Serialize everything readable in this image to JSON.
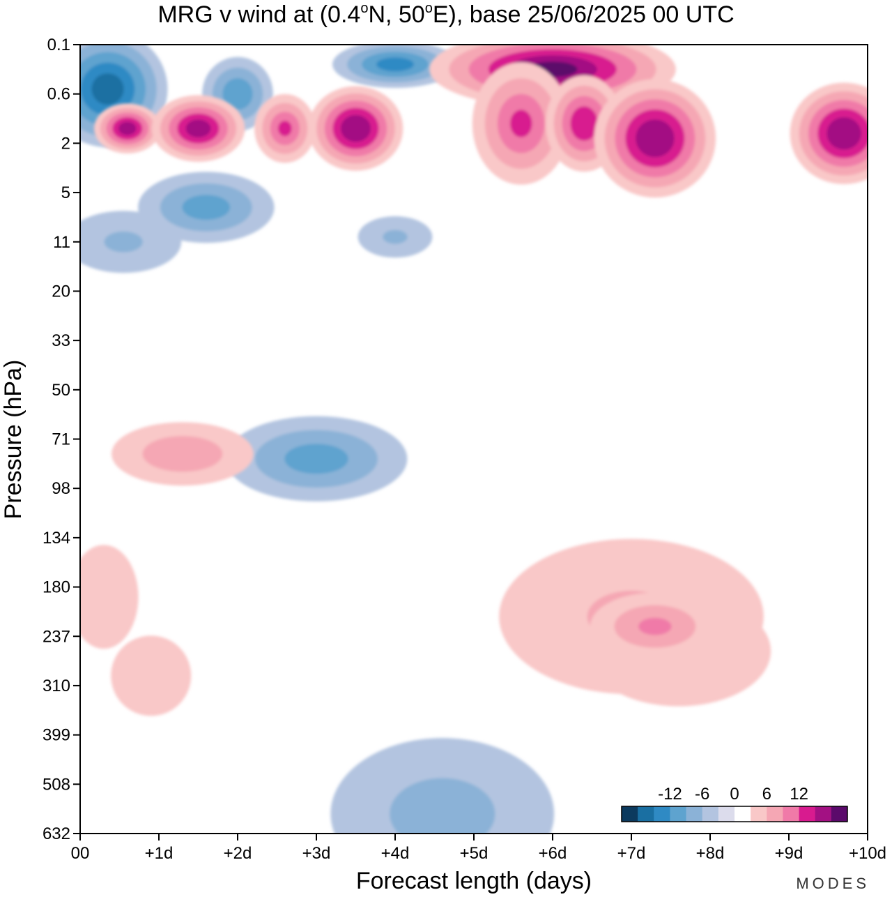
{
  "chart_data": {
    "type": "heatmap",
    "title_main": "MRG v wind at (0.4",
    "title_lat": "N, 50",
    "title_lon": "E),  base 25/06/2025  00 UTC",
    "title_deg": "o",
    "xlabel": "Forecast length (days)",
    "ylabel": "Pressure (hPa)",
    "x_ticks": [
      "00",
      "+1d",
      "+2d",
      "+3d",
      "+4d",
      "+5d",
      "+6d",
      "+7d",
      "+8d",
      "+9d",
      "+10d"
    ],
    "y_ticks": [
      "0.1",
      "0.6",
      "2",
      "5",
      "11",
      "20",
      "33",
      "50",
      "71",
      "98",
      "134",
      "180",
      "237",
      "310",
      "399",
      "508",
      "632"
    ],
    "xlim": [
      0,
      10
    ],
    "colorbar": {
      "labels": [
        "-12",
        "-6",
        "0",
        "6",
        "12"
      ],
      "label_values": [
        -12,
        -6,
        0,
        6,
        12
      ],
      "levels": [
        -18,
        -15,
        -12,
        -9,
        -6,
        -3,
        0,
        3,
        6,
        9,
        12,
        15,
        18
      ],
      "colors": [
        "#0c3a5e",
        "#1a6fa2",
        "#2f8ac4",
        "#5ea3cf",
        "#8bb2d7",
        "#b3c4e0",
        "#dcdcec",
        "#ffffff",
        "#f9c8c8",
        "#f5a7b4",
        "#f07aa8",
        "#d81b8f",
        "#a31183",
        "#5b0a6b"
      ]
    },
    "brand": "MODES",
    "regions": [
      {
        "x": 0.35,
        "y": 0.9,
        "rx": 0.45,
        "ry": 0.7,
        "value": -16
      },
      {
        "x": 2.0,
        "y": 1.0,
        "rx": 0.3,
        "ry": 0.5,
        "value": -11
      },
      {
        "x": 4.0,
        "y": 0.4,
        "rx": 0.5,
        "ry": 0.3,
        "value": -13
      },
      {
        "x": 1.6,
        "y": 3.3,
        "rx": 0.6,
        "ry": 0.5,
        "value": -10
      },
      {
        "x": 0.55,
        "y": 4.0,
        "rx": 0.7,
        "ry": 0.6,
        "value": -6
      },
      {
        "x": 4.0,
        "y": 3.9,
        "rx": 0.45,
        "ry": 0.4,
        "value": -6
      },
      {
        "x": 3.0,
        "y": 8.4,
        "rx": 0.8,
        "ry": 0.6,
        "value": -10
      },
      {
        "x": 4.6,
        "y": 15.6,
        "rx": 1.2,
        "ry": 1.3,
        "value": -7
      },
      {
        "x": 0.6,
        "y": 1.7,
        "rx": 0.25,
        "ry": 0.3,
        "value": 16
      },
      {
        "x": 1.5,
        "y": 1.7,
        "rx": 0.35,
        "ry": 0.4,
        "value": 16
      },
      {
        "x": 2.6,
        "y": 1.7,
        "rx": 0.25,
        "ry": 0.45,
        "value": 12
      },
      {
        "x": 3.5,
        "y": 1.7,
        "rx": 0.35,
        "ry": 0.5,
        "value": 17
      },
      {
        "x": 6.0,
        "y": 0.5,
        "rx": 0.9,
        "ry": 0.45,
        "value": 18
      },
      {
        "x": 5.6,
        "y": 1.6,
        "rx": 0.4,
        "ry": 0.8,
        "value": 12
      },
      {
        "x": 6.4,
        "y": 1.6,
        "rx": 0.3,
        "ry": 0.6,
        "value": 14
      },
      {
        "x": 7.3,
        "y": 1.9,
        "rx": 0.45,
        "ry": 0.7,
        "value": 17
      },
      {
        "x": 9.7,
        "y": 1.8,
        "rx": 0.4,
        "ry": 0.6,
        "value": 17
      },
      {
        "x": 1.3,
        "y": 8.3,
        "rx": 0.7,
        "ry": 0.5,
        "value": 8
      },
      {
        "x": 0.3,
        "y": 11.2,
        "rx": 0.5,
        "ry": 1.2,
        "value": 5
      },
      {
        "x": 0.9,
        "y": 12.8,
        "rx": 1.0,
        "ry": 1.6,
        "value": 3.5
      },
      {
        "x": 7.0,
        "y": 11.6,
        "rx": 1.6,
        "ry": 1.5,
        "value": 6
      },
      {
        "x": 7.6,
        "y": 12.3,
        "rx": 2.3,
        "ry": 2.2,
        "value": 3.5
      },
      {
        "x": 7.3,
        "y": 11.8,
        "rx": 0.6,
        "ry": 0.5,
        "value": 9
      }
    ]
  }
}
